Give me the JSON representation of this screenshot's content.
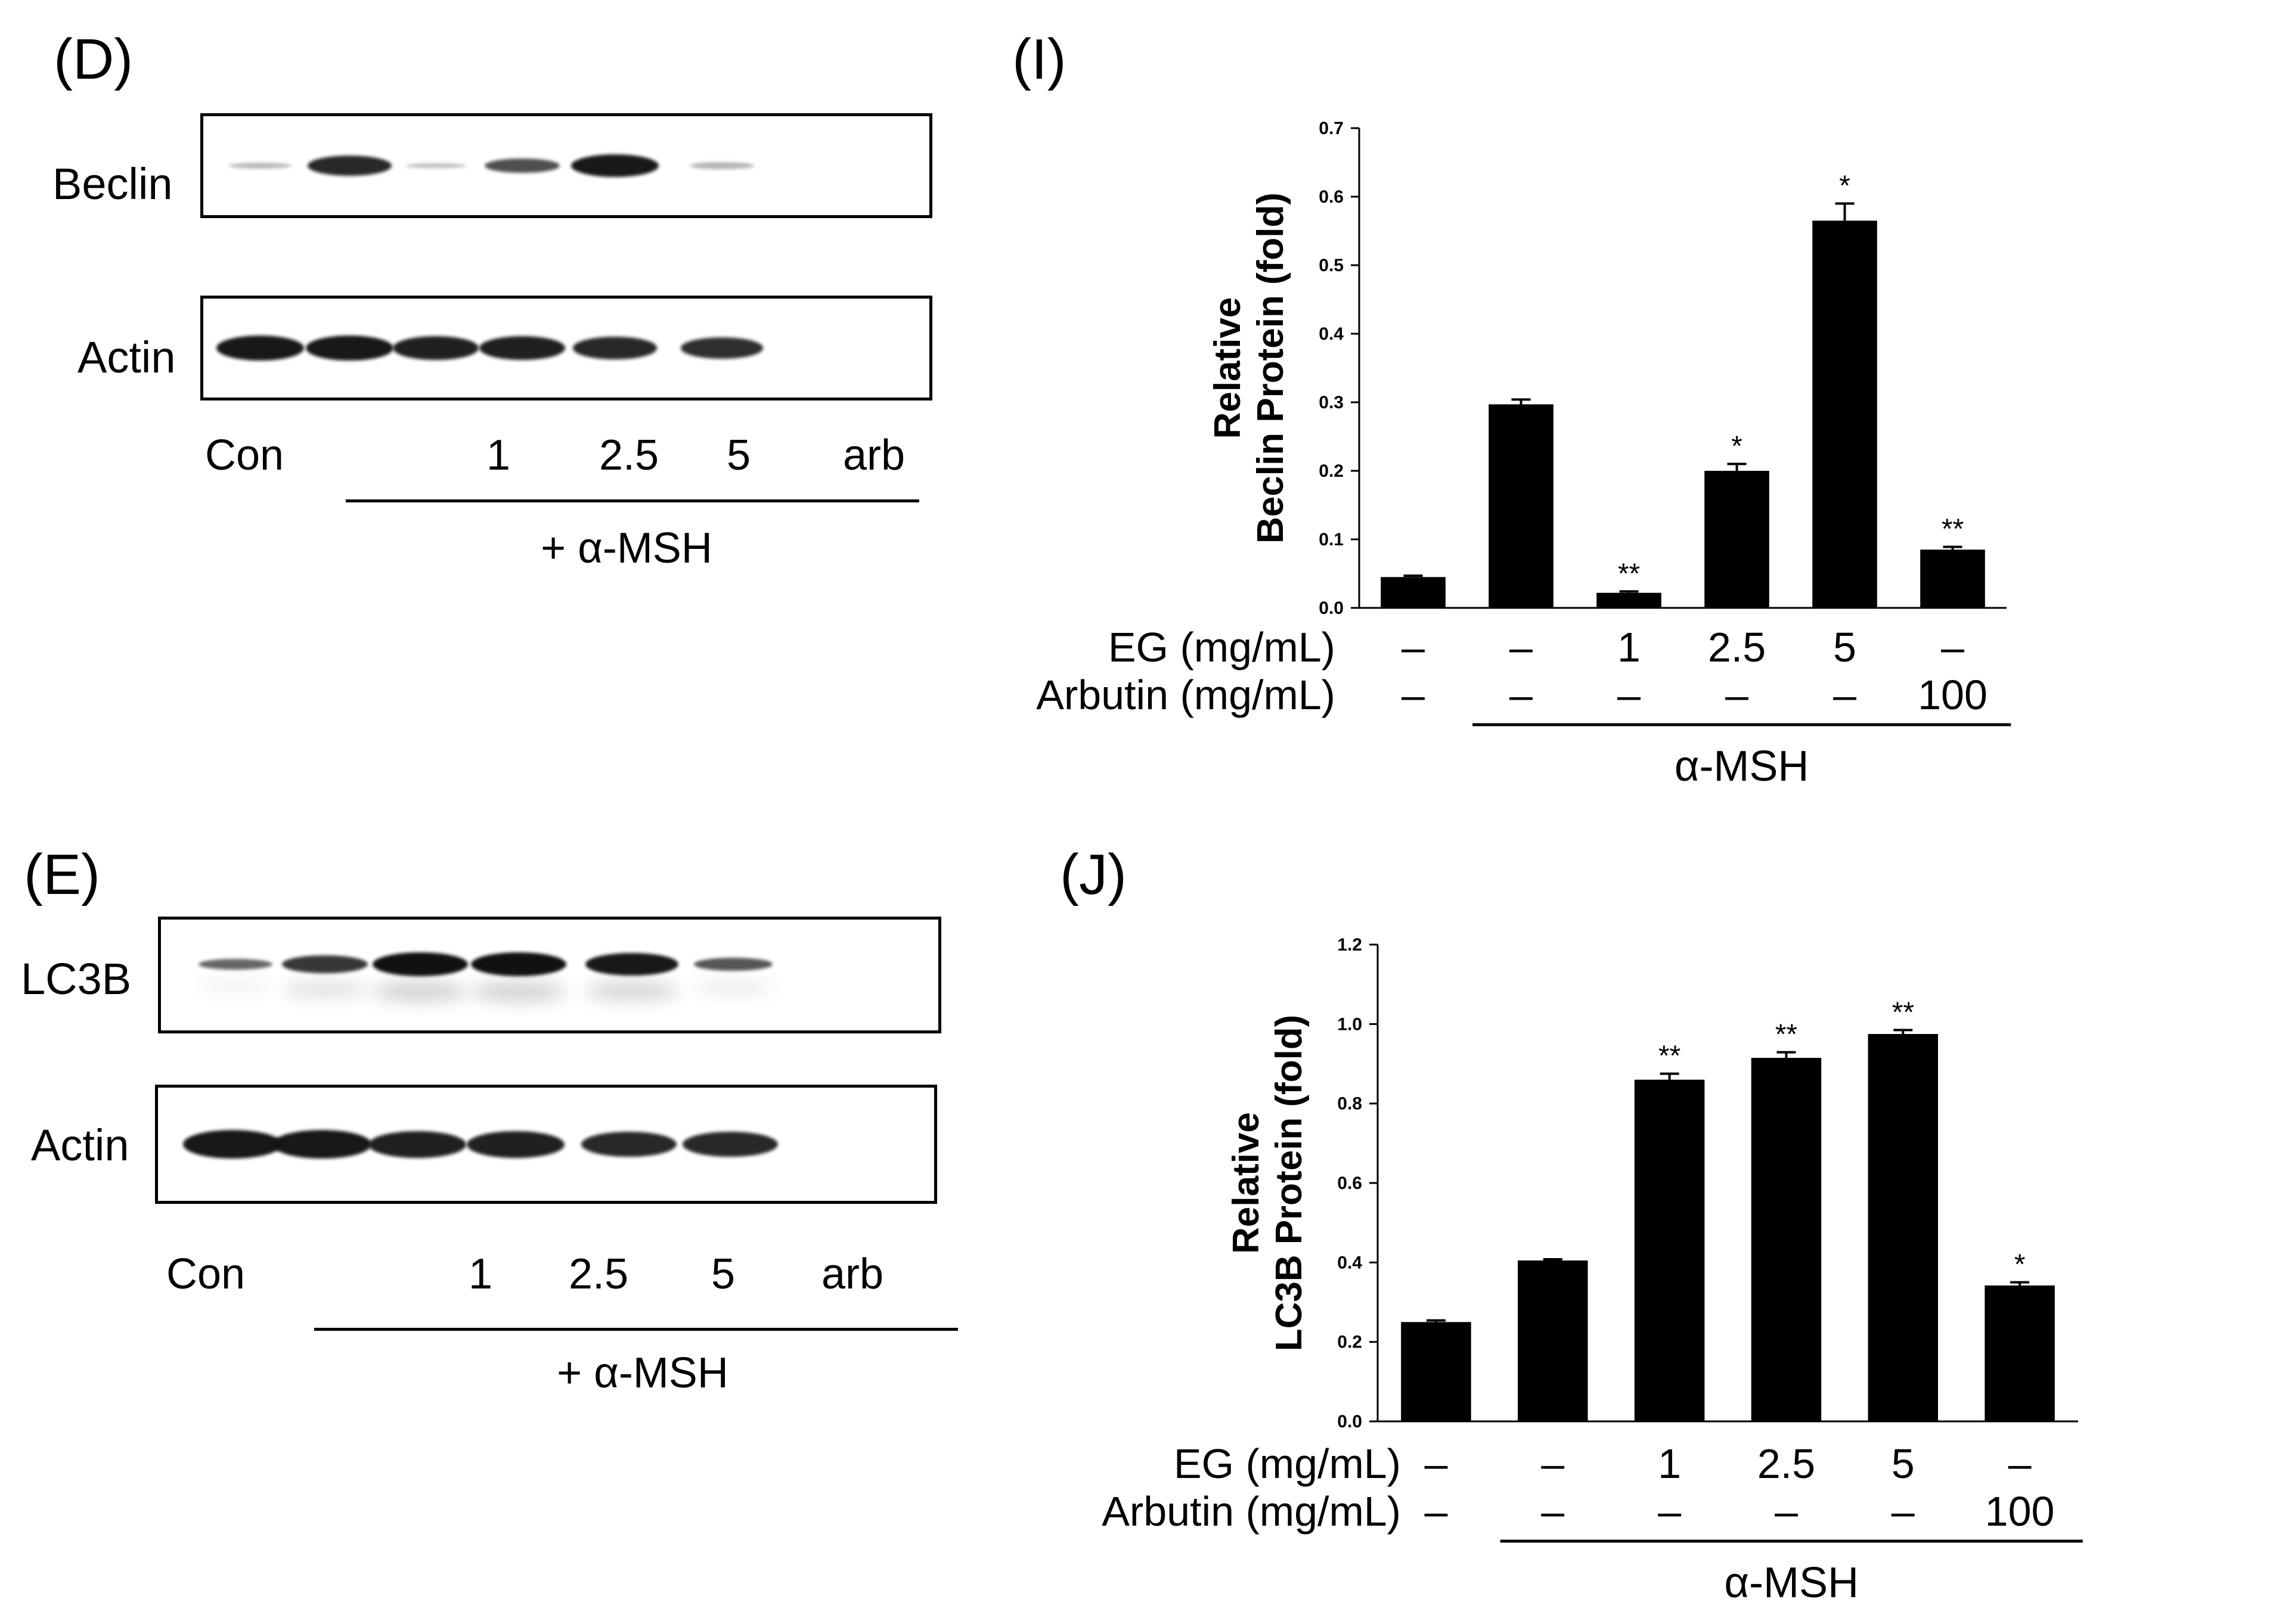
{
  "panels": {
    "D": {
      "label": "(D)",
      "blots": [
        {
          "name": "Beclin",
          "intensity": [
            0.25,
            0.85,
            0.2,
            0.6,
            0.95,
            0.3
          ]
        },
        {
          "name": "Actin",
          "intensity": [
            0.95,
            0.95,
            0.9,
            0.9,
            0.85,
            0.8
          ]
        }
      ],
      "lanes": [
        "Con",
        "",
        "1",
        "2.5",
        "5",
        "arb"
      ],
      "treatment": "+ α-MSH"
    },
    "E": {
      "label": "(E)",
      "blots": [
        {
          "name": "LC3B",
          "intensity": [
            0.45,
            0.75,
            1.0,
            1.0,
            0.95,
            0.55
          ]
        },
        {
          "name": "Actin",
          "intensity": [
            0.95,
            0.95,
            0.9,
            0.9,
            0.85,
            0.85
          ]
        }
      ],
      "lanes": [
        "Con",
        "",
        "1",
        "2.5",
        "5",
        "arb"
      ],
      "treatment": "+ α-MSH"
    }
  },
  "chart_data": [
    {
      "panel_label": "(I)",
      "type": "bar",
      "ylabel": [
        "Relative",
        "Beclin Protein (fold)"
      ],
      "ylim": [
        0,
        0.7
      ],
      "yticks": [
        "0.0",
        "0.1",
        "0.2",
        "0.3",
        "0.4",
        "0.5",
        "0.6",
        "0.7"
      ],
      "values": [
        0.045,
        0.297,
        0.022,
        0.2,
        0.565,
        0.085
      ],
      "errors": [
        0.002,
        0.007,
        0.002,
        0.01,
        0.025,
        0.004
      ],
      "significance": [
        "",
        "",
        "**",
        "*",
        "*",
        "**"
      ],
      "row_labels": [
        "EG (mg/mL)",
        "Arbutin (mg/mL)"
      ],
      "eg_values": [
        "–",
        "–",
        "1",
        "2.5",
        "5",
        "–"
      ],
      "arbutin_values": [
        "–",
        "–",
        "–",
        "–",
        "–",
        "100"
      ],
      "group_label": "α-MSH"
    },
    {
      "panel_label": "(J)",
      "type": "bar",
      "ylabel": [
        "Relative",
        "LC3B Protein (fold)"
      ],
      "ylim": [
        0,
        1.2
      ],
      "yticks": [
        "0.0",
        "0.2",
        "0.4",
        "0.6",
        "0.8",
        "1.0",
        "1.2"
      ],
      "values": [
        0.25,
        0.405,
        0.86,
        0.915,
        0.975,
        0.342
      ],
      "errors": [
        0.004,
        0.003,
        0.015,
        0.014,
        0.01,
        0.008
      ],
      "significance": [
        "",
        "",
        "**",
        "**",
        "**",
        "*"
      ],
      "row_labels": [
        "EG (mg/mL)",
        "Arbutin (mg/mL)"
      ],
      "eg_values": [
        "–",
        "–",
        "1",
        "2.5",
        "5",
        "–"
      ],
      "arbutin_values": [
        "–",
        "–",
        "–",
        "–",
        "–",
        "100"
      ],
      "group_label": "α-MSH"
    }
  ]
}
